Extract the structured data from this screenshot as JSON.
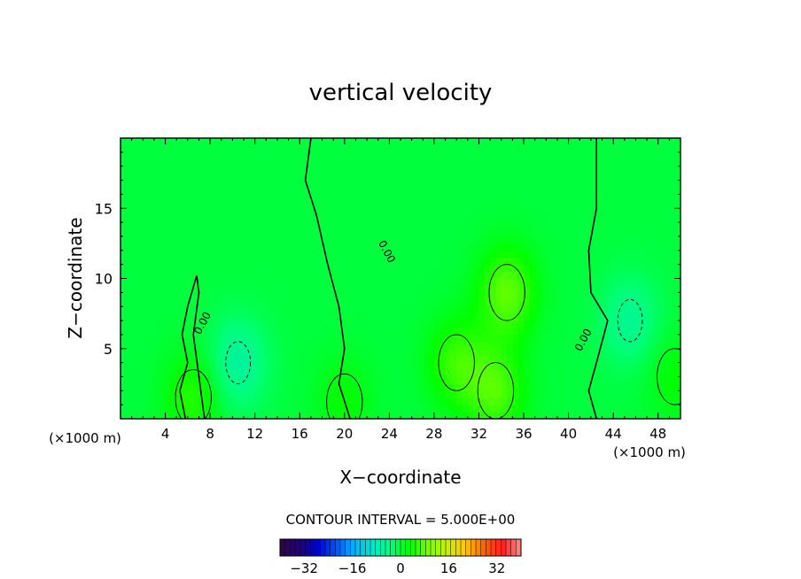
{
  "chart_data": {
    "type": "heatmap",
    "title": "vertical velocity",
    "xlabel": "X−coordinate",
    "ylabel": "Z−coordinate",
    "x_unit_left": "(×1000 m)",
    "x_unit_right": "(×1000 m)",
    "xlim": [
      0,
      50
    ],
    "ylim": [
      0,
      20
    ],
    "x_ticks": [
      4,
      8,
      12,
      16,
      20,
      24,
      28,
      32,
      36,
      40,
      44,
      48
    ],
    "y_ticks": [
      5,
      10,
      15
    ],
    "contour_interval_text": "CONTOUR INTERVAL = 5.000E+00",
    "contour_interval": 5,
    "contour_label": "0.00",
    "colorbar": {
      "range": [
        -40,
        40
      ],
      "ticks": [
        -32,
        -16,
        0,
        16,
        32
      ],
      "tick_labels": [
        "−32",
        "−16",
        "0",
        "16",
        "32"
      ],
      "colors": [
        "#2b0a3a",
        "#22007a",
        "#0000c8",
        "#0050ff",
        "#00b4ff",
        "#00e6c8",
        "#00ff78",
        "#00ff00",
        "#78ff00",
        "#c8f000",
        "#ffc800",
        "#ff6400",
        "#ff1e1e",
        "#ff8c8c"
      ]
    },
    "features": [
      {
        "kind": "updraft",
        "x": 34.5,
        "z": 9,
        "peak": 8
      },
      {
        "kind": "updraft",
        "x": 30,
        "z": 4,
        "peak": 6
      },
      {
        "kind": "updraft",
        "x": 33.5,
        "z": 2,
        "peak": 7
      },
      {
        "kind": "updraft",
        "x": 6.5,
        "z": 1.5,
        "peak": 5
      },
      {
        "kind": "downdraft",
        "x": 10.5,
        "z": 4,
        "peak": -6
      },
      {
        "kind": "downdraft",
        "x": 45.5,
        "z": 7,
        "peak": -5
      },
      {
        "kind": "updraft",
        "x": 49.5,
        "z": 3,
        "peak": 3
      },
      {
        "kind": "updraft",
        "x": 20,
        "z": 1.2,
        "peak": 3
      }
    ]
  }
}
